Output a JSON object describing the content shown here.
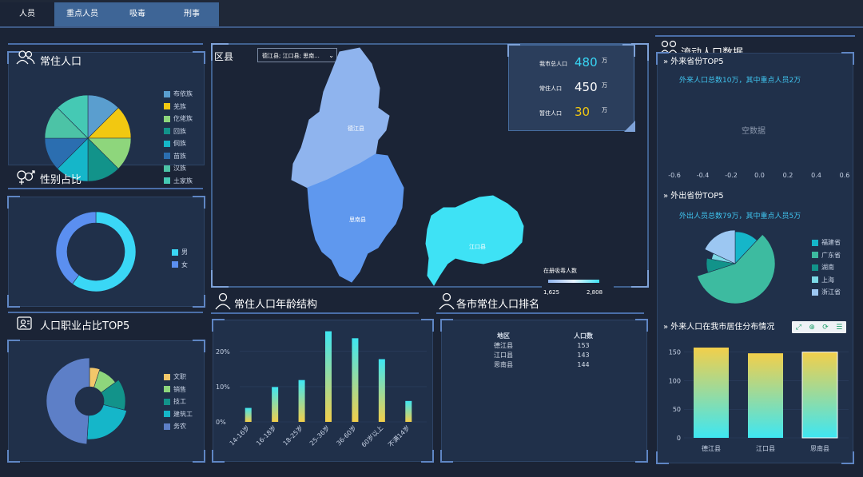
{
  "tabs": [
    {
      "label": "人员"
    },
    {
      "label": "重点人员"
    },
    {
      "label": "吸毒"
    },
    {
      "label": "刑事"
    }
  ],
  "resident": {
    "title": "常住人口",
    "legend": [
      {
        "label": "布依族",
        "color": "#5a9ecf"
      },
      {
        "label": "羌族",
        "color": "#f2c811"
      },
      {
        "label": "仡佬族",
        "color": "#8ed67c"
      },
      {
        "label": "回族",
        "color": "#12938a"
      },
      {
        "label": "侗族",
        "color": "#15b6c9"
      },
      {
        "label": "苗族",
        "color": "#2b6eb0"
      },
      {
        "label": "汉族",
        "color": "#4cc3a6"
      },
      {
        "label": "土家族",
        "color": "#45c9b4"
      }
    ]
  },
  "gender": {
    "title": "性别占比",
    "legend": [
      {
        "label": "男",
        "color": "#3ad7f6"
      },
      {
        "label": "女",
        "color": "#5b8ff0"
      }
    ]
  },
  "occupation": {
    "title": "人口职业占比TOP5",
    "legend": [
      {
        "label": "文职",
        "color": "#f3c76a"
      },
      {
        "label": "销售",
        "color": "#8ed67c"
      },
      {
        "label": "技工",
        "color": "#12938a"
      },
      {
        "label": "建筑工",
        "color": "#15b6c9"
      },
      {
        "label": "务农",
        "color": "#5d7fc7"
      }
    ]
  },
  "map": {
    "label": "区县",
    "select_value": "德江县; 江口县; 思南...",
    "county_labels": [
      "德江县",
      "思南县",
      "江口县"
    ],
    "legend_title": "在册吸毒人数",
    "legend_min": "1,625",
    "legend_max": "2,808"
  },
  "stats": [
    {
      "label": "我市总人口",
      "value": "480",
      "unit": "万",
      "color": "#38d6f5"
    },
    {
      "label": "常住人口",
      "value": "450",
      "unit": "万",
      "color": "#ffffff"
    },
    {
      "label": "暂住人口",
      "value": "30",
      "unit": "万",
      "color": "#f2c811"
    }
  ],
  "age": {
    "title": "常住人口年龄结构"
  },
  "ranking": {
    "title": "各市常住人口排名",
    "headers": [
      "地区",
      "人口数"
    ],
    "rows": [
      [
        "德江县",
        "153"
      ],
      [
        "江口县",
        "143"
      ],
      [
        "思南县",
        "144"
      ]
    ]
  },
  "flow": {
    "title": "流动人口数据",
    "inbound": {
      "title": "外来省份TOP5",
      "summary": "外来人口总数10万，其中重点人员2万",
      "empty": "空数据"
    },
    "outbound": {
      "title": "外出省份TOP5",
      "summary": "外出人员总数79万，其中重点人员5万",
      "legend": [
        {
          "label": "福建省",
          "color": "#15b6c9"
        },
        {
          "label": "广东省",
          "color": "#3dbba0"
        },
        {
          "label": "湖南",
          "color": "#12938a"
        },
        {
          "label": "上海",
          "color": "#7cd9e6"
        },
        {
          "label": "浙江省",
          "color": "#9cc7f2"
        }
      ]
    },
    "distribution": {
      "title": "外来人口在我市居住分布情况"
    }
  },
  "chart_data": [
    {
      "type": "pie",
      "title": "常住人口",
      "categories": [
        "布依族",
        "羌族",
        "仡佬族",
        "回族",
        "侗族",
        "苗族",
        "汉族",
        "土家族"
      ],
      "values": [
        1,
        1,
        1,
        1,
        1,
        1,
        1,
        1
      ],
      "colors": [
        "#5a9ecf",
        "#f2c811",
        "#8ed67c",
        "#12938a",
        "#15b6c9",
        "#2b6eb0",
        "#4cc3a6",
        "#45c9b4"
      ]
    },
    {
      "type": "pie",
      "title": "性别占比",
      "categories": [
        "男",
        "女"
      ],
      "values": [
        60,
        40
      ],
      "colors": [
        "#3ad7f6",
        "#5b8ff0"
      ]
    },
    {
      "type": "pie",
      "title": "人口职业占比TOP5",
      "categories": [
        "文职",
        "销售",
        "技工",
        "建筑工",
        "务农"
      ],
      "values": [
        5,
        10,
        14,
        22,
        49
      ],
      "colors": [
        "#f3c76a",
        "#8ed67c",
        "#12938a",
        "#15b6c9",
        "#5d7fc7"
      ]
    },
    {
      "type": "bar",
      "title": "常住人口年龄结构",
      "categories": [
        "14-16岁",
        "16-18岁",
        "18-25岁",
        "25-36岁",
        "36-60岁",
        "60岁以上",
        "不满14岁"
      ],
      "values": [
        4,
        10,
        12,
        26,
        24,
        18,
        6
      ],
      "yticks": [
        "0%",
        "10%",
        "20%"
      ],
      "ylim": [
        0,
        26
      ]
    },
    {
      "type": "scatter",
      "title": "外来省份TOP5",
      "x_ticks": [
        "-0.6",
        "-0.4",
        "-0.2",
        "0.0",
        "0.2",
        "0.4",
        "0.6"
      ],
      "values": []
    },
    {
      "type": "pie",
      "title": "外出省份TOP5",
      "categories": [
        "福建省",
        "广东省",
        "湖南",
        "上海",
        "浙江省"
      ],
      "values": [
        12,
        58,
        8,
        4,
        18
      ],
      "colors": [
        "#15b6c9",
        "#3dbba0",
        "#12938a",
        "#7cd9e6",
        "#9cc7f2"
      ]
    },
    {
      "type": "bar",
      "title": "外来人口在我市居住分布情况",
      "categories": [
        "德江县",
        "江口县",
        "思南县"
      ],
      "values": [
        158,
        148,
        150
      ],
      "yticks": [
        "0",
        "50",
        "100",
        "150"
      ],
      "ylim": [
        0,
        165
      ]
    }
  ]
}
